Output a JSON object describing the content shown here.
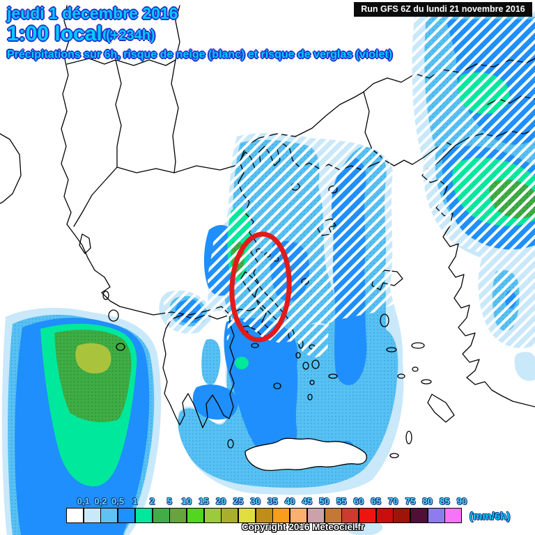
{
  "header": {
    "date_line": "jeudi 1 décembre 2016",
    "time_line": "1:00 locale",
    "offset": "(+234h)",
    "subtitle": "Précipitations sur 6h, risque de neige (blanc) et risque de verglas (violet)",
    "run_info": "Run GFS 6Z du lundi 21 novembre 2016"
  },
  "legend": {
    "unit_label": "(mm/6h)",
    "tick_labels": [
      "0,1",
      "0,2",
      "0,5",
      "1",
      "2",
      "5",
      "10",
      "15",
      "20",
      "25",
      "30",
      "35",
      "40",
      "45",
      "50",
      "55",
      "60",
      "65",
      "70",
      "75",
      "80",
      "85",
      "90"
    ],
    "box_colors": [
      "#ffffff",
      "#c9e8fa",
      "#5fc2f2",
      "#1e90ff",
      "#00e89c",
      "#42ac48",
      "#68a43c",
      "#52d61e",
      "#9cca3c",
      "#a9ae2c",
      "#dede3e",
      "#be8e18",
      "#f89e1c",
      "#fbb070",
      "#cca2aa",
      "#c47838",
      "#cc3a32",
      "#ee1410",
      "#cc0d0d",
      "#9e1408",
      "#4f1038",
      "#8f7bf0",
      "#f774f7"
    ]
  },
  "footer": {
    "copyright": "Copyright 2016 Meteociel.fr"
  },
  "map": {
    "annotation": "risk-ellipse",
    "palette": {
      "pale_blue": "#c9e8fa",
      "light_blue": "#58c0f2",
      "light_blue_dot": "#35a9e6",
      "mid_blue": "#1e8ffc",
      "spring_green": "#00e89c",
      "green": "#3fac44",
      "green_dot": "#2d9036",
      "yellow_green": "#a9c43c",
      "hatch_white": "#ffffff",
      "annotation_red": "#e31a1a",
      "coast_black": "#000000",
      "land_white": "#ffffff"
    }
  }
}
